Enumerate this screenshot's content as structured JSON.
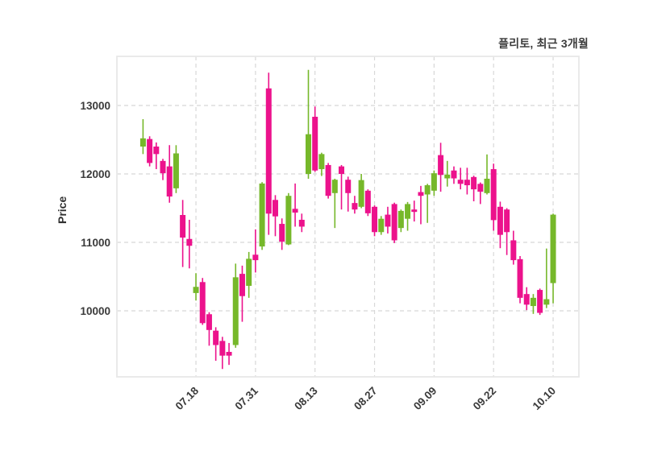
{
  "header": {
    "title": "플리토, 최근 3개월"
  },
  "chart_data": {
    "type": "candlestick",
    "title": "플리토, 최근 3개월",
    "ylabel": "Price",
    "xlabel": "",
    "grid": true,
    "up_color": "#76b82a",
    "down_color": "#ec128c",
    "grid_color": "#d8d8d8",
    "border_color": "#e8e8e8",
    "tick_color": "#3b3b3b",
    "ylim": [
      9035,
      13718
    ],
    "yticks": [
      10000,
      11000,
      12000,
      13000
    ],
    "xtick_labels": [
      "07.18",
      "07.31",
      "08.13",
      "08.27",
      "09.09",
      "09.22",
      "10.10"
    ],
    "xtick_indices": [
      8,
      17,
      26,
      35,
      44,
      53,
      62
    ],
    "ohlc_note": "open, high, low, close per trading day",
    "candles": [
      [
        12400,
        12800,
        12290,
        12520
      ],
      [
        12510,
        12550,
        12110,
        12160
      ],
      [
        12400,
        12460,
        12070,
        12290
      ],
      [
        12190,
        12220,
        11910,
        12010
      ],
      [
        12110,
        12420,
        11580,
        11670
      ],
      [
        11790,
        12420,
        11720,
        12300
      ],
      [
        11400,
        11620,
        10640,
        11070
      ],
      [
        11050,
        11330,
        10620,
        10950
      ],
      [
        10260,
        10550,
        10150,
        10350
      ],
      [
        10420,
        10480,
        9795,
        9820
      ],
      [
        9950,
        9980,
        9490,
        9720
      ],
      [
        9710,
        9760,
        9270,
        9500
      ],
      [
        9560,
        9620,
        9150,
        9345
      ],
      [
        9400,
        9530,
        9210,
        9345
      ],
      [
        9500,
        10690,
        9460,
        10490
      ],
      [
        10540,
        10660,
        9840,
        10215
      ],
      [
        10365,
        10860,
        10190,
        10760
      ],
      [
        10820,
        11190,
        10560,
        10740
      ],
      [
        10940,
        11880,
        10890,
        11860
      ],
      [
        13250,
        13480,
        11110,
        11420
      ],
      [
        11620,
        11690,
        11090,
        11380
      ],
      [
        11270,
        11350,
        10890,
        11010
      ],
      [
        10970,
        11720,
        10960,
        11680
      ],
      [
        11490,
        11860,
        11230,
        11435
      ],
      [
        11330,
        11420,
        11150,
        11230
      ],
      [
        12000,
        13520,
        11930,
        12580
      ],
      [
        12835,
        12985,
        12030,
        12050
      ],
      [
        12070,
        12310,
        11970,
        12290
      ],
      [
        12130,
        12160,
        11640,
        11680
      ],
      [
        11720,
        11930,
        11210,
        11915
      ],
      [
        12110,
        12130,
        11480,
        12000
      ],
      [
        11915,
        11960,
        11450,
        11720
      ],
      [
        11575,
        11680,
        11420,
        11480
      ],
      [
        11520,
        12000,
        11500,
        11910
      ],
      [
        11755,
        11775,
        11385,
        11425
      ],
      [
        11520,
        11540,
        11090,
        11150
      ],
      [
        11150,
        11385,
        11110,
        11345
      ],
      [
        11405,
        11520,
        11130,
        11230
      ],
      [
        11560,
        11580,
        10990,
        11030
      ],
      [
        11210,
        11480,
        11150,
        11460
      ],
      [
        11345,
        11590,
        11170,
        11560
      ],
      [
        11480,
        11610,
        11305,
        11445
      ],
      [
        11735,
        11825,
        11265,
        11680
      ],
      [
        11700,
        11855,
        11285,
        11835
      ],
      [
        11755,
        12050,
        11680,
        12010
      ],
      [
        12275,
        12455,
        11740,
        11985
      ],
      [
        11935,
        12190,
        11815,
        11990
      ],
      [
        12050,
        12110,
        11855,
        11935
      ],
      [
        11915,
        12090,
        11775,
        11855
      ],
      [
        11915,
        12090,
        11700,
        11835
      ],
      [
        11955,
        11975,
        11600,
        11775
      ],
      [
        11855,
        11875,
        11560,
        11740
      ],
      [
        11720,
        12285,
        11700,
        11930
      ],
      [
        12070,
        12150,
        11170,
        11325
      ],
      [
        11520,
        11595,
        10915,
        11110
      ],
      [
        11480,
        11500,
        10815,
        11150
      ],
      [
        11030,
        11170,
        10675,
        10740
      ],
      [
        10755,
        10800,
        10110,
        10190
      ],
      [
        10245,
        10345,
        10010,
        10090
      ],
      [
        10070,
        10245,
        9955,
        10190
      ],
      [
        10305,
        10325,
        9940,
        9970
      ],
      [
        10090,
        10910,
        10040,
        10170
      ],
      [
        10405,
        11420,
        10110,
        11405
      ]
    ]
  }
}
